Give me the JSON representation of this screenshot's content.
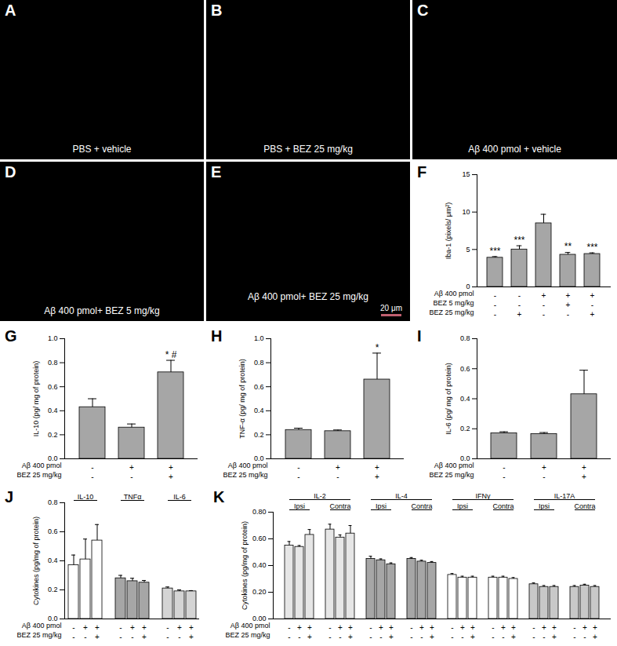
{
  "chart_data": [
    {
      "title": "F",
      "type": "bar",
      "categories": [
        null,
        null,
        null,
        null,
        null
      ],
      "values": [
        3.9,
        5,
        8.5,
        4.3,
        4.4
      ],
      "errors": [
        0.15,
        0.5,
        1.2,
        0.3,
        0.15
      ],
      "annotations": [
        "***",
        "***",
        null,
        "**",
        "***"
      ],
      "color": "#a6a6a6",
      "ylabel": "Iba-1 (pixels/ μm²)",
      "ylim": [
        0,
        15
      ],
      "yticks": [
        0,
        5,
        10,
        15
      ],
      "conditions": [
        {
          "label": "Aβ 400 pmol",
          "signs": [
            "-",
            "-",
            "+",
            "+",
            "+"
          ]
        },
        {
          "label": "BEZ 5 mg/kg",
          "signs": [
            "-",
            "-",
            "-",
            "+",
            "-"
          ]
        },
        {
          "label": "BEZ 25 mg/kg",
          "signs": [
            "-",
            "+",
            "-",
            "-",
            "+"
          ]
        }
      ]
    },
    {
      "title": "G",
      "type": "bar",
      "categories": [
        null,
        null,
        null
      ],
      "values": [
        0.43,
        0.26,
        0.72
      ],
      "errors": [
        0.07,
        0.03,
        0.1
      ],
      "annotations": [
        null,
        null,
        "* #"
      ],
      "color": "#a6a6a6",
      "ylabel": "IL-10 (pg/ mg of protein)",
      "ylim": [
        0,
        1
      ],
      "yticks": [
        {
          "value": 0,
          "label": "0.0"
        },
        {
          "value": 0.2,
          "label": "0.2"
        },
        {
          "value": 0.4,
          "label": "0.4"
        },
        {
          "value": 0.6,
          "label": "0.6"
        },
        {
          "value": 0.8,
          "label": "0.8"
        },
        {
          "value": 1,
          "label": "1.0"
        }
      ],
      "conditions": [
        {
          "label": "Aβ 400 pmol",
          "signs": [
            "-",
            "+",
            "+"
          ]
        },
        {
          "label": "BEZ 25 mg/kg",
          "signs": [
            "-",
            "-",
            "+"
          ]
        }
      ]
    },
    {
      "title": "H",
      "type": "bar",
      "categories": [
        null,
        null,
        null
      ],
      "values": [
        0.24,
        0.23,
        0.66
      ],
      "errors": [
        0.015,
        0.01,
        0.22
      ],
      "annotations": [
        null,
        null,
        "*"
      ],
      "color": "#a6a6a6",
      "ylabel": "TNF-α (pg/ mg of protein)",
      "ylim": [
        0,
        1
      ],
      "yticks": [
        {
          "value": 0,
          "label": "0.0"
        },
        {
          "value": 0.2,
          "label": "0.2"
        },
        {
          "value": 0.4,
          "label": "0.4"
        },
        {
          "value": 0.6,
          "label": "0.6"
        },
        {
          "value": 0.8,
          "label": "0.8"
        },
        {
          "value": 1,
          "label": "1.0"
        }
      ],
      "conditions": [
        {
          "label": "Aβ 400 pmol",
          "signs": [
            "-",
            "+",
            "+"
          ]
        },
        {
          "label": "BEZ 25 mg/kg",
          "signs": [
            "-",
            "-",
            "+"
          ]
        }
      ]
    },
    {
      "title": "I",
      "type": "bar",
      "categories": [
        null,
        null,
        null
      ],
      "values": [
        0.17,
        0.165,
        0.43
      ],
      "errors": [
        0.01,
        0.01,
        0.16
      ],
      "color": "#a6a6a6",
      "ylabel": "IL-6 (pg/ mg of protein)",
      "ylim": [
        0,
        0.8
      ],
      "yticks": [
        {
          "value": 0,
          "label": "0.0"
        },
        {
          "value": 0.2,
          "label": "0.2"
        },
        {
          "value": 0.4,
          "label": "0.4"
        },
        {
          "value": 0.6,
          "label": "0.6"
        },
        {
          "value": 0.8,
          "label": "0.8"
        }
      ],
      "conditions": [
        {
          "label": "Aβ 400 pmol",
          "signs": [
            "-",
            "+",
            "+"
          ]
        },
        {
          "label": "BEZ 25 mg/kg",
          "signs": [
            "-",
            "-",
            "+"
          ]
        }
      ]
    },
    {
      "title": "J",
      "type": "bar",
      "series": [
        {
          "name": "IL-10",
          "color": "#ffffff",
          "values": [
            0.37,
            0.41,
            0.54
          ],
          "errors": [
            0.07,
            0.14,
            0.11
          ]
        },
        {
          "name": "TNFα",
          "color": "#a6a6a6",
          "values": [
            0.28,
            0.26,
            0.25
          ],
          "errors": [
            0.02,
            0.02,
            0.015
          ]
        },
        {
          "name": "IL-6",
          "color": "#d4d4d4",
          "values": [
            0.21,
            0.19,
            0.19
          ],
          "errors": [
            0.01,
            0.01,
            0.005
          ]
        }
      ],
      "ylabel": "Cytokines (pg/mg of protein)",
      "ylim": [
        0,
        0.8
      ],
      "yticks": [
        {
          "value": 0,
          "label": "0.0"
        },
        {
          "value": 0.2,
          "label": "0.2"
        },
        {
          "value": 0.4,
          "label": "0.4"
        },
        {
          "value": 0.6,
          "label": "0.6"
        },
        {
          "value": 0.8,
          "label": "0.8"
        }
      ],
      "conditions": [
        {
          "label": "Aβ 400 pmol",
          "signs": [
            "-",
            "+",
            "+"
          ]
        },
        {
          "label": "BEZ 25 mg/kg",
          "signs": [
            "-",
            "-",
            "+"
          ]
        }
      ]
    },
    {
      "title": "K",
      "type": "bar",
      "series": [
        {
          "name": "IL-2",
          "color": "#e6e6e6",
          "subgroups": [
            {
              "name": "Ipsi",
              "values": [
                0.55,
                0.54,
                0.63
              ],
              "errors": [
                0.03,
                0.01,
                0.04
              ]
            },
            {
              "name": "Contra",
              "values": [
                0.67,
                0.61,
                0.64
              ],
              "errors": [
                0.04,
                0.02,
                0.06
              ]
            }
          ]
        },
        {
          "name": "IL-4",
          "color": "#a6a6a6",
          "subgroups": [
            {
              "name": "Ipsi",
              "values": [
                0.45,
                0.44,
                0.41
              ],
              "errors": [
                0.02,
                0.01,
                0.01
              ]
            },
            {
              "name": "Contra",
              "values": [
                0.45,
                0.43,
                0.42
              ],
              "errors": [
                0.01,
                0.01,
                0.01
              ]
            }
          ]
        },
        {
          "name": "IFNγ",
          "color": "#ffffff",
          "subgroups": [
            {
              "name": "Ipsi",
              "values": [
                0.33,
                0.31,
                0.31
              ],
              "errors": [
                0.01,
                0.01,
                0.01
              ]
            },
            {
              "name": "Contra",
              "values": [
                0.31,
                0.31,
                0.3
              ],
              "errors": [
                0.01,
                0.01,
                0.01
              ]
            }
          ]
        },
        {
          "name": "IL-17A",
          "color": "#c8c8c8",
          "subgroups": [
            {
              "name": "Ipsi",
              "values": [
                0.26,
                0.24,
                0.24
              ],
              "errors": [
                0.01,
                0.01,
                0.01
              ]
            },
            {
              "name": "Contra",
              "values": [
                0.24,
                0.25,
                0.24
              ],
              "errors": [
                0.01,
                0.01,
                0.01
              ]
            }
          ]
        }
      ],
      "ylabel": "Cytokines (pg/mg of protein)",
      "ylim": [
        0,
        0.8
      ],
      "yticks": [
        {
          "value": 0,
          "label": "0.00"
        },
        {
          "value": 0.2,
          "label": "0.20"
        },
        {
          "value": 0.4,
          "label": "0.40"
        },
        {
          "value": 0.6,
          "label": "0.60"
        },
        {
          "value": 0.8,
          "label": "0.80"
        }
      ],
      "conditions": [
        {
          "label": "Aβ 400 pmol",
          "signs": [
            "-",
            "+",
            "+"
          ]
        },
        {
          "label": "BEZ 25 mg/kg",
          "signs": [
            "-",
            "-",
            "+"
          ]
        }
      ]
    }
  ],
  "images": [
    {
      "letter": "A",
      "caption": "PBS + vehicle"
    },
    {
      "letter": "B",
      "caption": "PBS + BEZ 25 mg/kg"
    },
    {
      "letter": "C",
      "caption": "Aβ 400 pmol + vehicle"
    },
    {
      "letter": "D",
      "caption": "Aβ 400 pmol+ BEZ 5 mg/kg"
    },
    {
      "letter": "E",
      "caption": "Aβ 400 pmol+ BEZ 25 mg/kg",
      "scale_bar": "20 μm"
    }
  ]
}
